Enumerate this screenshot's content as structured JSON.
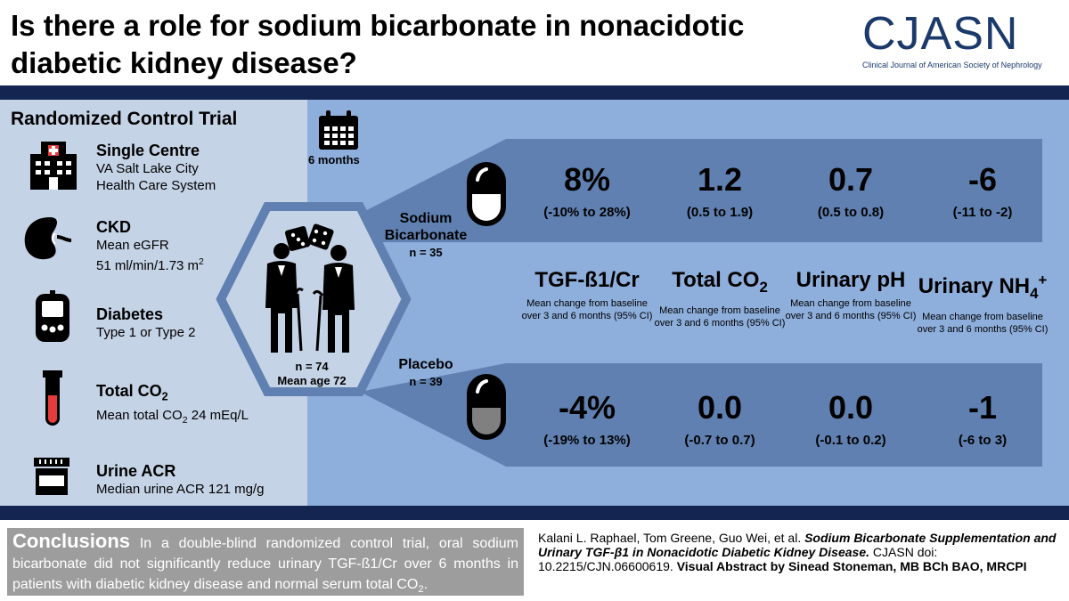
{
  "header": {
    "title_line1": "Is there a role for sodium bicarbonate in nonacidotic",
    "title_line2": "diabetic kidney disease?",
    "logo_main": "CJASN",
    "logo_sub": "Clinical Journal of American Society of Nephrology"
  },
  "left": {
    "heading": "Randomized Control Trial",
    "items": [
      {
        "icon": "hospital-icon",
        "head": "Single Centre",
        "lines": [
          "VA Salt Lake City",
          "Health Care System"
        ]
      },
      {
        "icon": "kidney-icon",
        "head": "CKD",
        "lines": [
          "Mean eGFR",
          "51 ml/min/1.73 m",
          "2"
        ]
      },
      {
        "icon": "glucometer-icon",
        "head": "Diabetes",
        "lines": [
          "Type 1 or Type 2"
        ]
      },
      {
        "icon": "test-tube-icon",
        "head": "Total CO",
        "head_sub": "2",
        "lines": [
          "Mean total CO",
          "2",
          " 24 mEq/L"
        ]
      },
      {
        "icon": "urine-cup-icon",
        "head": "Urine ACR",
        "lines": [
          "Median urine ACR 121 mg/g"
        ]
      }
    ]
  },
  "trial": {
    "duration": "6 months",
    "n_total": "n = 74",
    "mean_age": "Mean age 72",
    "arm1_label_1": "Sodium",
    "arm1_label_2": "Bicarbonate",
    "arm1_n": "n = 35",
    "arm2_label": "Placebo",
    "arm2_n": "n = 39"
  },
  "metrics": [
    {
      "name": "TGF-ß1/Cr",
      "sub": "",
      "sup": "",
      "desc": "Mean change from baseline over 3 and 6 months (95% CI)"
    },
    {
      "name": "Total CO",
      "sub": "2",
      "sup": "",
      "desc": "Mean change from baseline over 3 and 6 months (95% CI)"
    },
    {
      "name": "Urinary pH",
      "sub": "",
      "sup": "",
      "desc": "Mean change from baseline over 3 and 6 months (95% CI)"
    },
    {
      "name": "Urinary NH",
      "sub": "4",
      "sup": "+",
      "desc": "Mean change from baseline over 3 and 6 months (95% CI)"
    }
  ],
  "results": {
    "bicarbonate": [
      {
        "value": "8%",
        "ci": "(-10% to 28%)"
      },
      {
        "value": "1.2",
        "ci": "(0.5 to 1.9)"
      },
      {
        "value": "0.7",
        "ci": "(0.5 to 0.8)"
      },
      {
        "value": "-6",
        "ci": "(-11 to -2)"
      }
    ],
    "placebo": [
      {
        "value": "-4%",
        "ci": "(-19% to 13%)"
      },
      {
        "value": "0.0",
        "ci": "(-0.7 to 0.7)"
      },
      {
        "value": "0.0",
        "ci": "(-0.1 to 0.2)"
      },
      {
        "value": "-1",
        "ci": "(-6 to 3)"
      }
    ]
  },
  "conclusion": {
    "heading": "Conclusions",
    "text_1": " In a double-blind randomized control trial, oral sodium bicarbonate did not significantly reduce urinary TGF-ß1/Cr over 6 months in patients with diabetic kidney disease and normal serum total CO",
    "text_sub": "2",
    "text_2": "."
  },
  "citation": {
    "authors": "Kalani L. Raphael, Tom Greene, Guo Wei, et al. ",
    "title": "Sodium Bicarbonate Supplementation and Urinary TGF-β1 in Nonacidotic Diabetic Kidney Disease.",
    "doi": " CJASN doi: 10.2215/CJN.06600619. ",
    "credit": "Visual Abstract by Sinead Stoneman, MB BCh BAO, MRCPI"
  },
  "colors": {
    "navy": "#132550",
    "left_panel": "#c5d3e6",
    "right_panel": "#8eaedb",
    "band": "#5f80b0",
    "conclusion_bg": "#9d9d9d"
  }
}
